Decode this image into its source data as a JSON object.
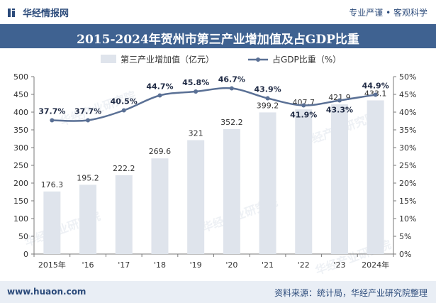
{
  "header": {
    "brand": "华经情报网",
    "tagline": "专业严谨 • 客观科学"
  },
  "footer": {
    "site": "www.huaon.com",
    "source": "资料来源：统计局，华经产业研究院整理"
  },
  "watermark": "华经产业研究院",
  "colors": {
    "bar": "#dfe4ec",
    "line": "#5a7095",
    "title_bg": "#3f6291",
    "brand": "#2b4a7a"
  },
  "chart_data": {
    "type": "bar",
    "title": "2015-2024年贺州市第三产业增加值及占GDP比重",
    "categories": [
      "2015年",
      "'16",
      "'17",
      "'18",
      "'19",
      "'20",
      "'21",
      "'22",
      "'23",
      "2024年"
    ],
    "series": [
      {
        "name": "第三产业增加值（亿元）",
        "type": "bar",
        "axis": "left",
        "values": [
          176.3,
          195.2,
          222.2,
          269.6,
          321,
          352.2,
          399.2,
          407.7,
          421.9,
          433.1
        ],
        "labels": [
          "176.3",
          "195.2",
          "222.2",
          "269.6",
          "321",
          "352.2",
          "399.2",
          "407.7",
          "421.9",
          "433.1"
        ]
      },
      {
        "name": "占GDP比重（%）",
        "type": "line",
        "axis": "right",
        "values": [
          37.7,
          37.7,
          40.5,
          44.7,
          45.8,
          46.7,
          43.9,
          41.9,
          43.3,
          44.9
        ],
        "labels": [
          "37.7%",
          "37.7%",
          "40.5%",
          "44.7%",
          "45.8%",
          "46.7%",
          "43.9%",
          "41.9%",
          "43.3%",
          "44.9%"
        ]
      }
    ],
    "y_left": {
      "min": 0,
      "max": 500,
      "step": 50
    },
    "y_right": {
      "min": 0,
      "max": 50,
      "step": 5,
      "unit": "%"
    },
    "legend_position": "top-center",
    "grid": false
  }
}
